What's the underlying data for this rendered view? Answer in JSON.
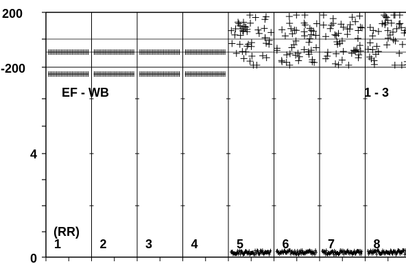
{
  "chart_data": {
    "type": "scatter",
    "top_panel": {
      "y_tick_labels": [
        "200",
        "-200"
      ],
      "ylim": [
        -200,
        200
      ],
      "annotation_left": "EF - WB",
      "annotation_right": "1 - 3",
      "series": [
        {
          "segment": 1,
          "pattern": "dense band",
          "y_center": -20,
          "y_range": [
            -10,
            -30
          ]
        },
        {
          "segment": 2,
          "pattern": "dense band",
          "y_center": -20,
          "y_range": [
            -10,
            -30
          ]
        },
        {
          "segment": 3,
          "pattern": "dense band",
          "y_center": -20,
          "y_range": [
            -10,
            -30
          ]
        },
        {
          "segment": 4,
          "pattern": "dense band",
          "y_center": -20,
          "y_range": [
            -10,
            -30
          ]
        },
        {
          "segment": 5,
          "pattern": "scattered",
          "y_range": [
            -200,
            200
          ]
        },
        {
          "segment": 6,
          "pattern": "scattered",
          "y_range": [
            -200,
            200
          ]
        },
        {
          "segment": 7,
          "pattern": "scattered",
          "y_range": [
            -200,
            200
          ]
        },
        {
          "segment": 8,
          "pattern": "scattered",
          "y_range": [
            -200,
            200
          ]
        }
      ]
    },
    "bottom_panel": {
      "y_tick_labels": [
        "4",
        "0"
      ],
      "ylim": [
        0,
        8
      ],
      "unit_label": "(RR)",
      "segment_labels": [
        "1",
        "2",
        "3",
        "4",
        "5",
        "6",
        "7",
        "8"
      ],
      "series": [
        {
          "segment": 5,
          "pattern": "dense band near zero",
          "y_range": [
            0,
            0.3
          ]
        },
        {
          "segment": 6,
          "pattern": "dense band near zero",
          "y_range": [
            0,
            0.3
          ]
        },
        {
          "segment": 7,
          "pattern": "dense band near zero",
          "y_range": [
            0,
            0.3
          ]
        },
        {
          "segment": 8,
          "pattern": "dense band near zero",
          "y_range": [
            0,
            0.3
          ]
        }
      ]
    },
    "grid": true
  }
}
